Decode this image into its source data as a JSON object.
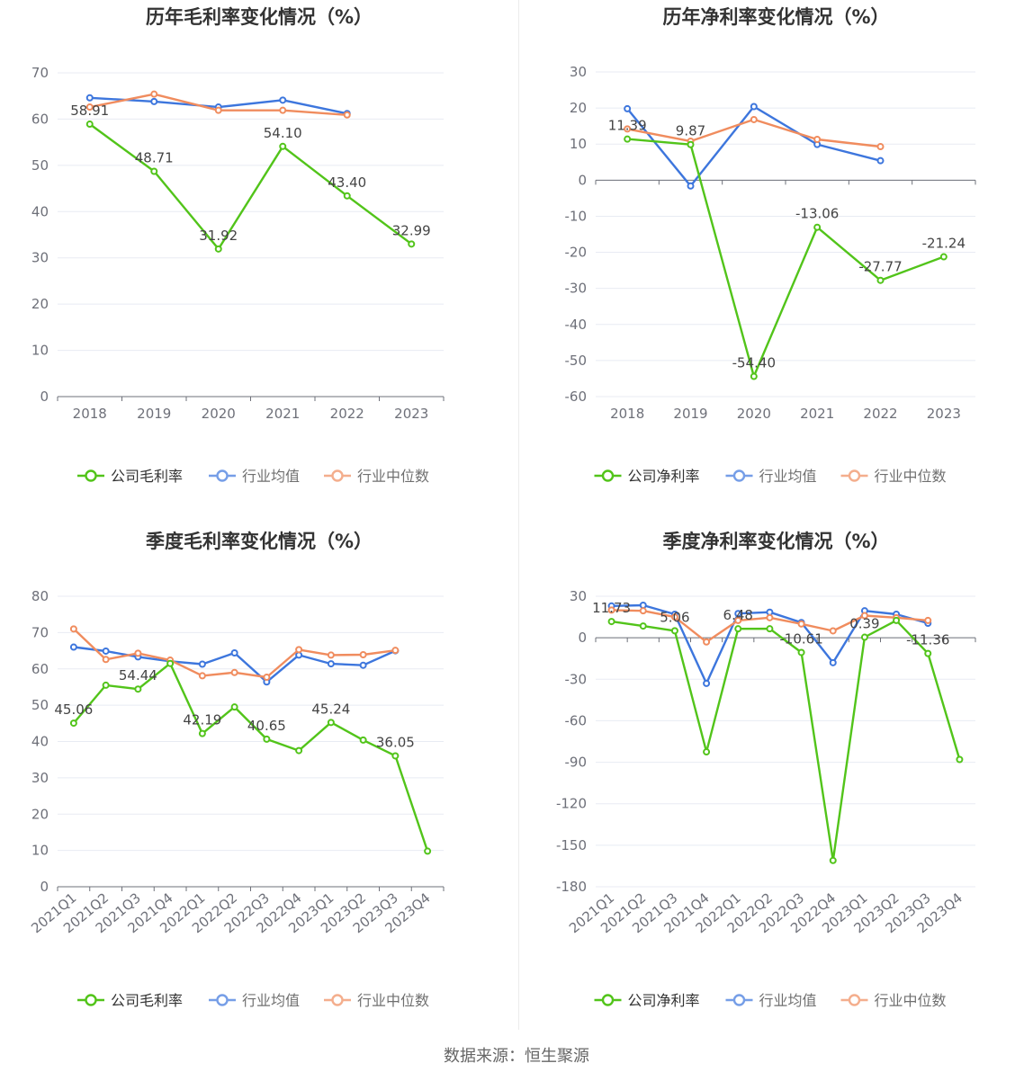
{
  "colors": {
    "company": "#52c41a",
    "industry_avg": "#3d76dd",
    "industry_median": "#f08c5e",
    "grid": "#e8ebf3",
    "axis": "#6e7079",
    "title": "#333333"
  },
  "source_text": "数据来源：恒生聚源",
  "chart_data": [
    {
      "type": "line",
      "title": "历年毛利率变化情况（%）",
      "categories": [
        "2018",
        "2019",
        "2020",
        "2021",
        "2022",
        "2023"
      ],
      "ylim": [
        0,
        70
      ],
      "yticks": [
        0,
        10,
        20,
        30,
        40,
        50,
        60,
        70
      ],
      "series": [
        {
          "name": "公司毛利率",
          "role": "company",
          "values": [
            58.91,
            48.71,
            31.92,
            54.1,
            43.4,
            32.99
          ],
          "labels": [
            "58.91",
            "48.71",
            "31.92",
            "54.10",
            "43.40",
            "32.99"
          ]
        },
        {
          "name": "行业均值",
          "role": "industry_avg",
          "values": [
            64.6,
            63.8,
            62.6,
            64.1,
            61.2,
            null
          ]
        },
        {
          "name": "行业中位数",
          "role": "industry_median",
          "values": [
            62.6,
            65.4,
            61.9,
            61.9,
            60.9,
            null
          ]
        }
      ]
    },
    {
      "type": "line",
      "title": "历年净利率变化情况（%）",
      "categories": [
        "2018",
        "2019",
        "2020",
        "2021",
        "2022",
        "2023"
      ],
      "ylim": [
        -60,
        30
      ],
      "yticks": [
        -60,
        -50,
        -40,
        -30,
        -20,
        -10,
        0,
        10,
        20,
        30
      ],
      "series": [
        {
          "name": "公司净利率",
          "role": "company",
          "values": [
            11.39,
            9.87,
            -54.4,
            -13.06,
            -27.77,
            -21.24
          ],
          "labels": [
            "11.39",
            "9.87",
            "-54.40",
            "-13.06",
            "-27.77",
            "-21.24"
          ]
        },
        {
          "name": "行业均值",
          "role": "industry_avg",
          "values": [
            19.8,
            -1.6,
            20.4,
            9.9,
            5.4,
            null
          ]
        },
        {
          "name": "行业中位数",
          "role": "industry_median",
          "values": [
            14.2,
            10.8,
            16.8,
            11.3,
            9.3,
            null
          ]
        }
      ]
    },
    {
      "type": "line",
      "title": "季度毛利率变化情况（%）",
      "categories": [
        "2021Q1",
        "2021Q2",
        "2021Q3",
        "2021Q4",
        "2022Q1",
        "2022Q2",
        "2022Q3",
        "2022Q4",
        "2023Q1",
        "2023Q2",
        "2023Q3",
        "2023Q4"
      ],
      "ylim": [
        0,
        80
      ],
      "yticks": [
        0,
        10,
        20,
        30,
        40,
        50,
        60,
        70,
        80
      ],
      "series": [
        {
          "name": "公司毛利率",
          "role": "company",
          "values": [
            45.06,
            55.5,
            54.44,
            61.5,
            42.19,
            49.5,
            40.65,
            37.5,
            45.24,
            40.4,
            36.05,
            9.8
          ],
          "labels": [
            "45.06",
            "",
            "54.44",
            "",
            "42.19",
            "",
            "40.65",
            "",
            "45.24",
            "",
            "36.05",
            ""
          ]
        },
        {
          "name": "行业均值",
          "role": "industry_avg",
          "values": [
            66.0,
            64.9,
            63.3,
            62.1,
            61.3,
            64.4,
            56.4,
            63.8,
            61.4,
            61.0,
            65.0,
            null
          ]
        },
        {
          "name": "行业中位数",
          "role": "industry_median",
          "values": [
            71.0,
            62.6,
            64.3,
            62.4,
            58.1,
            59.0,
            57.7,
            65.3,
            63.8,
            63.9,
            65.1,
            null
          ]
        }
      ]
    },
    {
      "type": "line",
      "title": "季度净利率变化情况（%）",
      "categories": [
        "2021Q1",
        "2021Q2",
        "2021Q3",
        "2021Q4",
        "2022Q1",
        "2022Q2",
        "2022Q3",
        "2022Q4",
        "2023Q1",
        "2023Q2",
        "2023Q3",
        "2023Q4"
      ],
      "ylim": [
        -180,
        30
      ],
      "yticks": [
        -180,
        -150,
        -120,
        -90,
        -60,
        -30,
        0,
        30
      ],
      "series": [
        {
          "name": "公司净利率",
          "role": "company",
          "values": [
            11.73,
            8.5,
            5.06,
            -82.5,
            6.48,
            6.5,
            -10.61,
            -161.0,
            0.39,
            12.5,
            -11.36,
            -88.0
          ],
          "labels": [
            "11.73",
            "",
            "5.06",
            "",
            "6.48",
            "",
            "-10.61",
            "",
            "0.39",
            "",
            "-11.36",
            ""
          ]
        },
        {
          "name": "行业均值",
          "role": "industry_avg",
          "values": [
            23.0,
            23.5,
            17.0,
            -33.0,
            17.5,
            18.5,
            11.0,
            -18.0,
            19.5,
            17.0,
            10.5,
            null
          ]
        },
        {
          "name": "行业中位数",
          "role": "industry_median",
          "values": [
            20.0,
            19.5,
            15.0,
            -3.0,
            12.5,
            14.5,
            10.0,
            5.0,
            16.0,
            14.5,
            12.5,
            null
          ]
        }
      ]
    }
  ]
}
